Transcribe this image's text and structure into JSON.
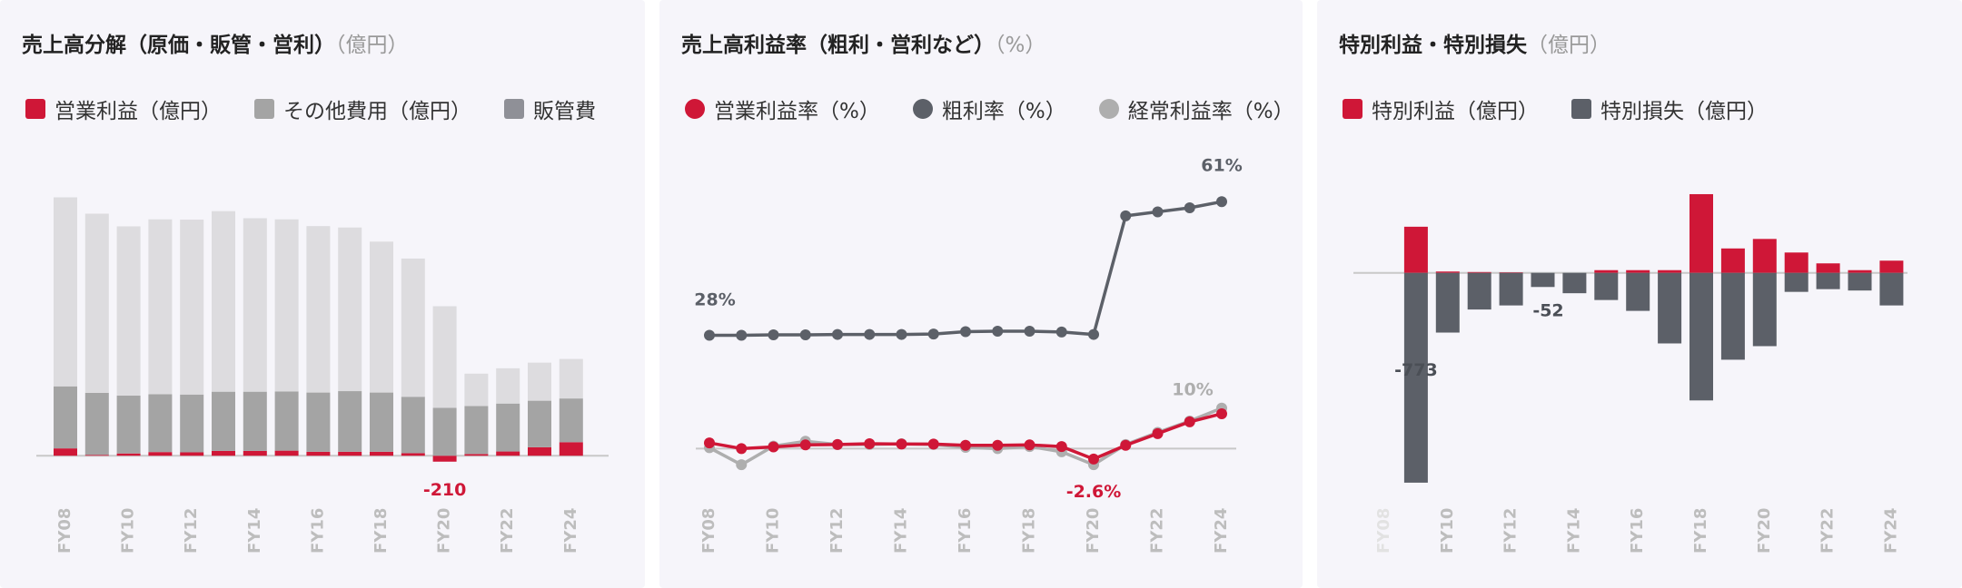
{
  "panels": [
    {
      "title": "売上高分解（原価・販管・営利）",
      "unit": "（億円）",
      "legend": [
        {
          "label": "営業利益（億円）",
          "color": "#cf1737",
          "shape": "square"
        },
        {
          "label": "その他費用（億円）",
          "color": "#a4a4a4",
          "shape": "square"
        },
        {
          "label": "販管費",
          "color": "#8f9097",
          "shape": "square"
        }
      ]
    },
    {
      "title": "売上高利益率（粗利・営利など）",
      "unit": "（%）",
      "legend": [
        {
          "label": "営業利益率（%）",
          "color": "#cf1737",
          "shape": "circle"
        },
        {
          "label": "粗利率（%）",
          "color": "#5c6068",
          "shape": "circle"
        },
        {
          "label": "経常利益率（%）",
          "color": "#aeaeae",
          "shape": "circle"
        }
      ]
    },
    {
      "title": "特別利益・特別損失",
      "unit": "（億円）",
      "legend": [
        {
          "label": "特別利益（億円）",
          "color": "#cf1737",
          "shape": "square"
        },
        {
          "label": "特別損失（億円）",
          "color": "#5c6068",
          "shape": "square"
        }
      ]
    }
  ],
  "chart_data": [
    {
      "type": "bar",
      "stacked": true,
      "categories": [
        "FY08",
        "FY09",
        "FY10",
        "FY11",
        "FY12",
        "FY13",
        "FY14",
        "FY15",
        "FY16",
        "FY17",
        "FY18",
        "FY19",
        "FY20",
        "FY21",
        "FY22",
        "FY23",
        "FY24"
      ],
      "x_tick_labels": [
        "FY08",
        "FY10",
        "FY12",
        "FY14",
        "FY16",
        "FY18",
        "FY20",
        "FY22",
        "FY24"
      ],
      "series": [
        {
          "name": "営業利益（億円）",
          "color": "#cf1737",
          "values": [
            260,
            30,
            80,
            130,
            120,
            170,
            170,
            180,
            140,
            140,
            140,
            90,
            -210,
            60,
            150,
            300,
            480
          ]
        },
        {
          "name": "その他費用（億円）",
          "color": "#a4a4a4",
          "values": [
            2200,
            2200,
            2050,
            2050,
            2050,
            2100,
            2100,
            2100,
            2100,
            2150,
            2100,
            2000,
            1700,
            1700,
            1700,
            1650,
            1550
          ]
        },
        {
          "name": "販管費",
          "color": "#8f9097",
          "values": [
            0,
            0,
            0,
            0,
            0,
            0,
            0,
            0,
            0,
            0,
            0,
            0,
            0,
            0,
            0,
            0,
            0
          ]
        },
        {
          "name": "原価",
          "color": "#dddcdf",
          "values": [
            6700,
            6350,
            6000,
            6200,
            6200,
            6400,
            6150,
            6100,
            5900,
            5800,
            5350,
            4900,
            3600,
            1150,
            1250,
            1350,
            1400
          ]
        }
      ],
      "annotations": [
        {
          "category": "FY20",
          "text": "-210",
          "color": "#cf1737"
        }
      ],
      "ylim": [
        -250,
        9400
      ]
    },
    {
      "type": "line",
      "categories": [
        "FY08",
        "FY09",
        "FY10",
        "FY11",
        "FY12",
        "FY13",
        "FY14",
        "FY15",
        "FY16",
        "FY17",
        "FY18",
        "FY19",
        "FY20",
        "FY21",
        "FY22",
        "FY23",
        "FY24"
      ],
      "x_tick_labels": [
        "FY08",
        "FY10",
        "FY12",
        "FY14",
        "FY16",
        "FY18",
        "FY20",
        "FY22",
        "FY24"
      ],
      "series": [
        {
          "name": "営業利益率（%）",
          "color": "#cf1737",
          "values": [
            1.4,
            0.0,
            0.4,
            0.9,
            1.0,
            1.2,
            1.1,
            1.1,
            0.8,
            0.8,
            0.9,
            0.5,
            -2.6,
            0.8,
            3.7,
            6.6,
            8.6
          ]
        },
        {
          "name": "粗利率（%）",
          "color": "#5c6068",
          "values": [
            28,
            28,
            28.1,
            28.1,
            28.2,
            28.2,
            28.2,
            28.3,
            28.9,
            29.0,
            29.0,
            28.8,
            28.2,
            57.5,
            58.5,
            59.5,
            61
          ]
        },
        {
          "name": "経常利益率（%）",
          "color": "#aeaeae",
          "values": [
            0.2,
            -4.0,
            0.6,
            1.8,
            1.0,
            1.0,
            1.2,
            1.0,
            0.3,
            0.0,
            0.5,
            -0.8,
            -4.0,
            1.0,
            4.0,
            6.8,
            10
          ]
        }
      ],
      "annotations": [
        {
          "series": "粗利率（%）",
          "category": "FY08",
          "text": "28%"
        },
        {
          "series": "粗利率（%）",
          "category": "FY24",
          "text": "61%"
        },
        {
          "series": "経常利益率（%）",
          "category": "FY24",
          "text": "10%"
        },
        {
          "series": "営業利益率（%）",
          "category": "FY20",
          "text": "-2.6%"
        }
      ],
      "ylim": [
        -8,
        66
      ]
    },
    {
      "type": "bar",
      "categories": [
        "FY08",
        "FY09",
        "FY10",
        "FY11",
        "FY12",
        "FY13",
        "FY14",
        "FY15",
        "FY16",
        "FY17",
        "FY18",
        "FY19",
        "FY20",
        "FY21",
        "FY22",
        "FY23",
        "FY24"
      ],
      "x_tick_labels": [
        "FY08",
        "FY10",
        "FY12",
        "FY14",
        "FY16",
        "FY18",
        "FY20",
        "FY22",
        "FY24"
      ],
      "series": [
        {
          "name": "特別利益（億円）",
          "color": "#cf1737",
          "values": [
            0,
            170,
            5,
            3,
            2,
            0,
            0,
            10,
            10,
            10,
            290,
            90,
            125,
            75,
            35,
            10,
            45
          ]
        },
        {
          "name": "特別損失（億円）",
          "color": "#5c6068",
          "values": [
            0,
            -773,
            -220,
            -135,
            -120,
            -52,
            -75,
            -100,
            -140,
            -260,
            -470,
            -320,
            -270,
            -70,
            -60,
            -65,
            -120
          ]
        }
      ],
      "annotations": [
        {
          "series": "特別損失（億円）",
          "category": "FY09",
          "text": "-773"
        },
        {
          "series": "特別損失（億円）",
          "category": "FY13",
          "text": "-52"
        }
      ],
      "ylim": [
        -800,
        320
      ]
    }
  ]
}
